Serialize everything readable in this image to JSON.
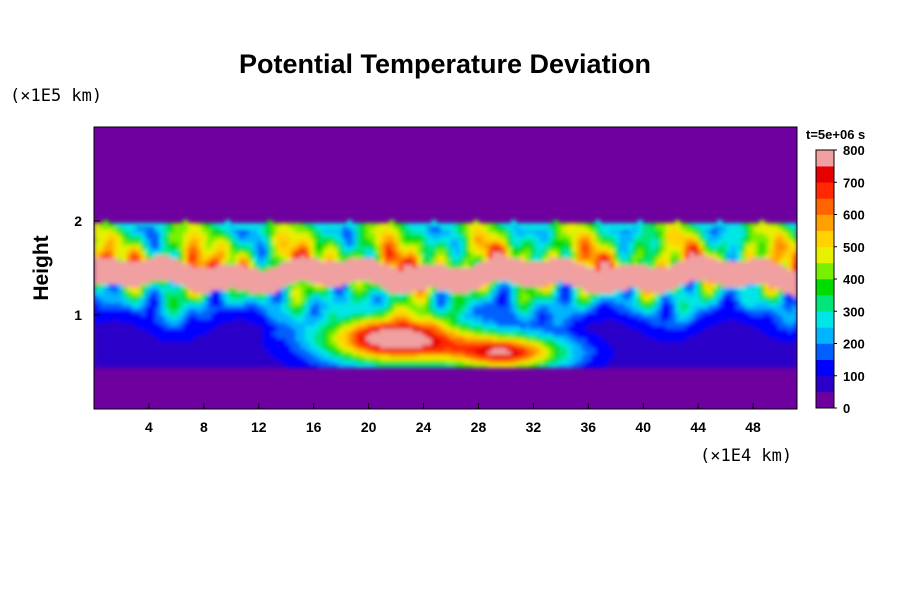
{
  "chart_data": {
    "type": "heatmap",
    "title": "Potential Temperature Deviation",
    "ylabel": "Height",
    "x_unit_label": "(×1E4 km)",
    "y_unit_label": "(×1E5 km)",
    "xlim": [
      0,
      51.2
    ],
    "ylim": [
      0,
      3.0
    ],
    "x_ticks": [
      4,
      8,
      12,
      16,
      20,
      24,
      28,
      32,
      36,
      40,
      44,
      48
    ],
    "y_ticks": [
      1,
      2
    ],
    "time_label": "t=5e+06 s",
    "colorbar": {
      "min": 0,
      "max": 800,
      "ticks": [
        0,
        100,
        200,
        300,
        400,
        500,
        600,
        700,
        800
      ],
      "colors": [
        "#6e00a0",
        "#2a00c8",
        "#0000ff",
        "#0060ff",
        "#00b4ff",
        "#00e6e6",
        "#00e678",
        "#00dc00",
        "#78f000",
        "#e6f000",
        "#ffd200",
        "#ffa000",
        "#ff6400",
        "#ff2800",
        "#e60000",
        "#f0a0a0"
      ]
    },
    "field_description": {
      "background_value": 0,
      "core_layer_height": [
        1.25,
        1.55
      ],
      "core_value": 800,
      "mixing_zone_height": [
        0.5,
        2.0
      ]
    }
  }
}
